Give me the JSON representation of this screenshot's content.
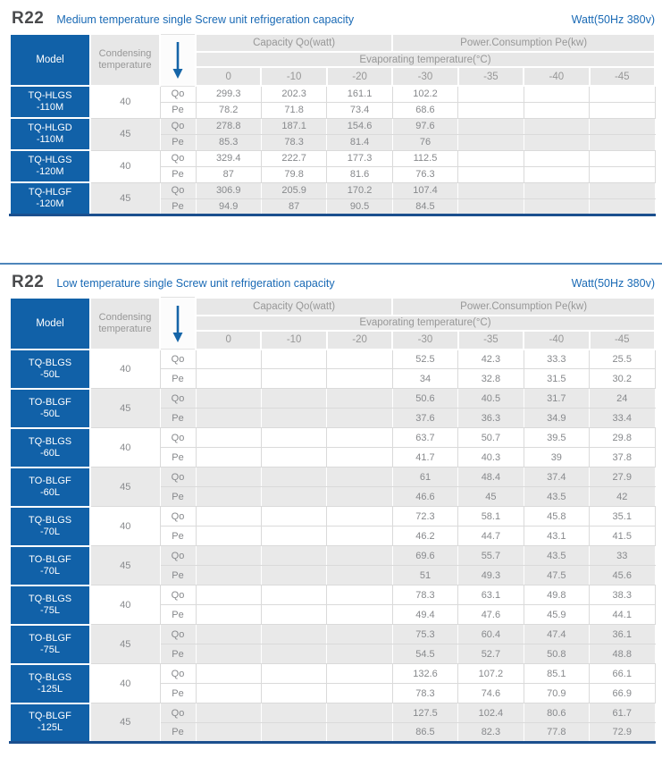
{
  "colors": {
    "brand_blue": "#1161a8",
    "title_text": "#4a4b4d",
    "subtitle_blue": "#1a6ab5",
    "header_gray_bg": "#e7e7e7",
    "shaded_row_bg": "#e9e9e9",
    "table_bottom_border": "#1b4f8e",
    "section_separator": "#4e86bb",
    "data_text": "#87898c"
  },
  "icons": {
    "flow_arrow": "down-arrow"
  },
  "table_headers": {
    "model": "Model",
    "condensing": "Condensing temperature",
    "capacity_group": "Capacity Qo(watt)",
    "power_group": "Power.Consumption Pe(kw)",
    "evaporating": "Evaporating temperature(°C)",
    "temps": [
      "0",
      "-10",
      "-20",
      "-30",
      "-35",
      "-40",
      "-45"
    ],
    "qo_label": "Qo",
    "pe_label": "Pe"
  },
  "sections": [
    {
      "refrigerant": "R22",
      "title": "Medium temperature single Screw unit refrigeration capacity",
      "unit": "Watt(50Hz 380v)",
      "table": {
        "rows": [
          {
            "model_top": "TQ-HLGS",
            "model_bottom": "-110M",
            "condensing": "40",
            "qo": [
              "299.3",
              "202.3",
              "161.1",
              "102.2",
              "",
              "",
              ""
            ],
            "pe": [
              "78.2",
              "71.8",
              "73.4",
              "68.6",
              "",
              "",
              ""
            ]
          },
          {
            "model_top": "TQ-HLGD",
            "model_bottom": "-110M",
            "condensing": "45",
            "qo": [
              "278.8",
              "187.1",
              "154.6",
              "97.6",
              "",
              "",
              ""
            ],
            "pe": [
              "85.3",
              "78.3",
              "81.4",
              "76",
              "",
              "",
              ""
            ]
          },
          {
            "model_top": "TQ-HLGS",
            "model_bottom": "-120M",
            "condensing": "40",
            "qo": [
              "329.4",
              "222.7",
              "177.3",
              "112.5",
              "",
              "",
              ""
            ],
            "pe": [
              "87",
              "79.8",
              "81.6",
              "76.3",
              "",
              "",
              ""
            ]
          },
          {
            "model_top": "TQ-HLGF",
            "model_bottom": "-120M",
            "condensing": "45",
            "qo": [
              "306.9",
              "205.9",
              "170.2",
              "107.4",
              "",
              "",
              ""
            ],
            "pe": [
              "94.9",
              "87",
              "90.5",
              "84.5",
              "",
              "",
              ""
            ]
          }
        ]
      }
    },
    {
      "refrigerant": "R22",
      "title": "Low temperature single Screw unit refrigeration capacity",
      "unit": "Watt(50Hz 380v)",
      "table": {
        "rows": [
          {
            "model_top": "TQ-BLGS",
            "model_bottom": "-50L",
            "condensing": "40",
            "qo": [
              "",
              "",
              "",
              "52.5",
              "42.3",
              "33.3",
              "25.5"
            ],
            "pe": [
              "",
              "",
              "",
              "34",
              "32.8",
              "31.5",
              "30.2"
            ]
          },
          {
            "model_top": "TO-BLGF",
            "model_bottom": "-50L",
            "condensing": "45",
            "qo": [
              "",
              "",
              "",
              "50.6",
              "40.5",
              "31.7",
              "24"
            ],
            "pe": [
              "",
              "",
              "",
              "37.6",
              "36.3",
              "34.9",
              "33.4"
            ]
          },
          {
            "model_top": "TQ-BLGS",
            "model_bottom": "-60L",
            "condensing": "40",
            "qo": [
              "",
              "",
              "",
              "63.7",
              "50.7",
              "39.5",
              "29.8"
            ],
            "pe": [
              "",
              "",
              "",
              "41.7",
              "40.3",
              "39",
              "37.8"
            ]
          },
          {
            "model_top": "TO-BLGF",
            "model_bottom": "-60L",
            "condensing": "45",
            "qo": [
              "",
              "",
              "",
              "61",
              "48.4",
              "37.4",
              "27.9"
            ],
            "pe": [
              "",
              "",
              "",
              "46.6",
              "45",
              "43.5",
              "42"
            ]
          },
          {
            "model_top": "TQ-BLGS",
            "model_bottom": "-70L",
            "condensing": "40",
            "qo": [
              "",
              "",
              "",
              "72.3",
              "58.1",
              "45.8",
              "35.1"
            ],
            "pe": [
              "",
              "",
              "",
              "46.2",
              "44.7",
              "43.1",
              "41.5"
            ]
          },
          {
            "model_top": "TO-BLGF",
            "model_bottom": "-70L",
            "condensing": "45",
            "qo": [
              "",
              "",
              "",
              "69.6",
              "55.7",
              "43.5",
              "33"
            ],
            "pe": [
              "",
              "",
              "",
              "51",
              "49.3",
              "47.5",
              "45.6"
            ]
          },
          {
            "model_top": "TQ-BLGS",
            "model_bottom": "-75L",
            "condensing": "40",
            "qo": [
              "",
              "",
              "",
              "78.3",
              "63.1",
              "49.8",
              "38.3"
            ],
            "pe": [
              "",
              "",
              "",
              "49.4",
              "47.6",
              "45.9",
              "44.1"
            ]
          },
          {
            "model_top": "TO-BLGF",
            "model_bottom": "-75L",
            "condensing": "45",
            "qo": [
              "",
              "",
              "",
              "75.3",
              "60.4",
              "47.4",
              "36.1"
            ],
            "pe": [
              "",
              "",
              "",
              "54.5",
              "52.7",
              "50.8",
              "48.8"
            ]
          },
          {
            "model_top": "TQ-BLGS",
            "model_bottom": "-125L",
            "condensing": "40",
            "qo": [
              "",
              "",
              "",
              "132.6",
              "107.2",
              "85.1",
              "66.1"
            ],
            "pe": [
              "",
              "",
              "",
              "78.3",
              "74.6",
              "70.9",
              "66.9"
            ]
          },
          {
            "model_top": "TQ-BLGF",
            "model_bottom": "-125L",
            "condensing": "45",
            "qo": [
              "",
              "",
              "",
              "127.5",
              "102.4",
              "80.6",
              "61.7"
            ],
            "pe": [
              "",
              "",
              "",
              "86.5",
              "82.3",
              "77.8",
              "72.9"
            ]
          }
        ]
      }
    }
  ]
}
